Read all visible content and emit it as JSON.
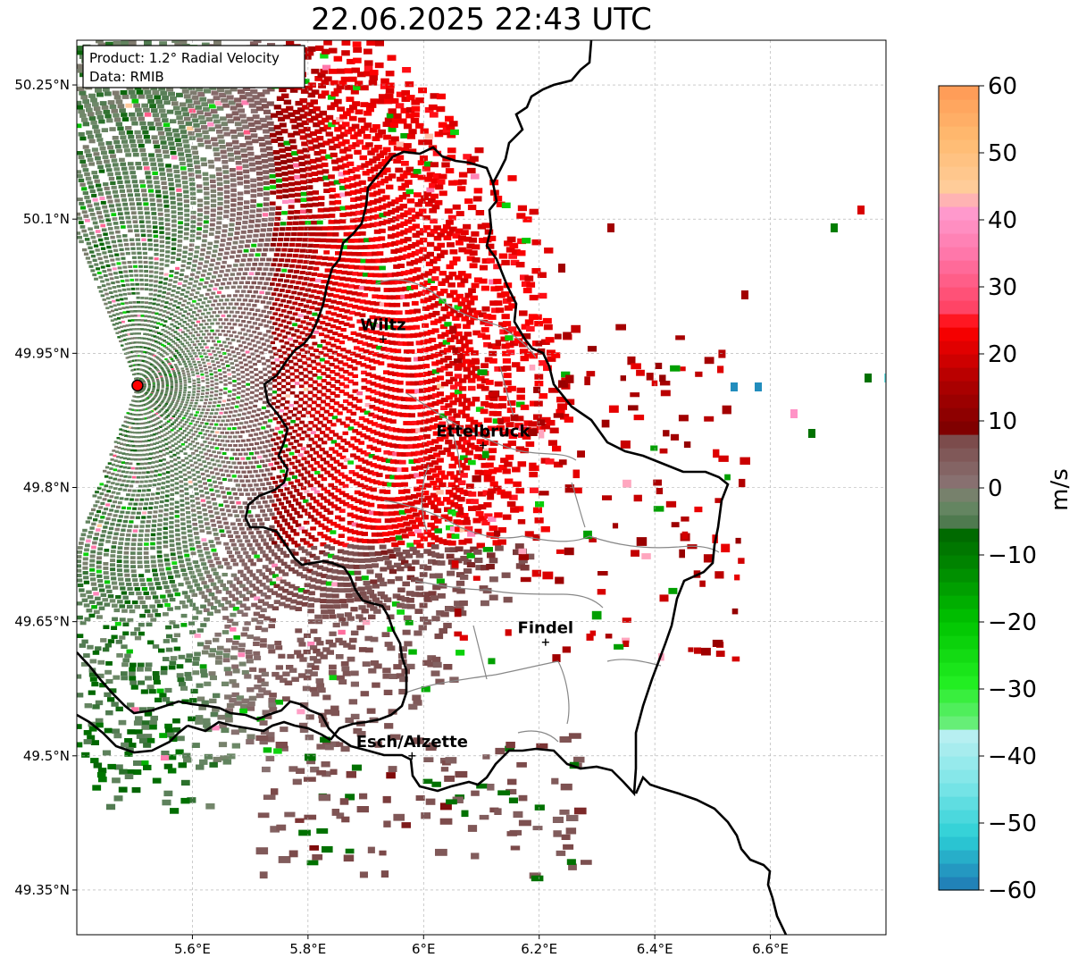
{
  "title": "22.06.2025 22:43 UTC",
  "info_box": {
    "product": "Product: 1.2° Radial Velocity",
    "data": "Data: RMIB"
  },
  "map": {
    "lon_range": [
      5.4,
      6.8
    ],
    "lat_range": [
      49.3,
      50.3
    ],
    "lon_ticks": [
      {
        "value": 5.6,
        "label": "5.6°E"
      },
      {
        "value": 5.8,
        "label": "5.8°E"
      },
      {
        "value": 6.0,
        "label": "6°E"
      },
      {
        "value": 6.2,
        "label": "6.2°E"
      },
      {
        "value": 6.4,
        "label": "6.4°E"
      },
      {
        "value": 6.6,
        "label": "6.6°E"
      }
    ],
    "lat_ticks": [
      {
        "value": 49.35,
        "label": "49.35°N"
      },
      {
        "value": 49.5,
        "label": "49.5°N"
      },
      {
        "value": 49.65,
        "label": "49.65°N"
      },
      {
        "value": 49.8,
        "label": "49.8°N"
      },
      {
        "value": 49.95,
        "label": "49.95°N"
      },
      {
        "value": 50.1,
        "label": "50.1°N"
      },
      {
        "value": 50.25,
        "label": "50.25°N"
      }
    ],
    "grid": true,
    "radar_site": {
      "lon": 5.505,
      "lat": 49.914
    },
    "cities": [
      {
        "name": "Wiltz",
        "lon": 5.93,
        "lat": 49.966
      },
      {
        "name": "Ettelbruck",
        "lon": 6.103,
        "lat": 49.847
      },
      {
        "name": "Findel",
        "lon": 6.211,
        "lat": 49.627
      },
      {
        "name": "Esch/Alzette",
        "lon": 5.98,
        "lat": 49.5
      }
    ]
  },
  "colorbar": {
    "label": "m/s",
    "min": -60,
    "max": 60,
    "ticks": [
      {
        "value": 60,
        "label": "60"
      },
      {
        "value": 50,
        "label": "50"
      },
      {
        "value": 40,
        "label": "40"
      },
      {
        "value": 30,
        "label": "30"
      },
      {
        "value": 20,
        "label": "20"
      },
      {
        "value": 10,
        "label": "10"
      },
      {
        "value": 0,
        "label": "0"
      },
      {
        "value": -10,
        "label": "−10"
      },
      {
        "value": -20,
        "label": "−20"
      },
      {
        "value": -30,
        "label": "−30"
      },
      {
        "value": -40,
        "label": "−40"
      },
      {
        "value": -50,
        "label": "−50"
      },
      {
        "value": -60,
        "label": "−60"
      }
    ],
    "color_stops": [
      {
        "value": -60,
        "color": "#1f77b4"
      },
      {
        "value": -52,
        "color": "#2ccfd6"
      },
      {
        "value": -44,
        "color": "#7ee6e8"
      },
      {
        "value": -36,
        "color": "#bff0f2"
      },
      {
        "value": -35,
        "color": "#66ee77"
      },
      {
        "value": -29,
        "color": "#22ee22"
      },
      {
        "value": -20,
        "color": "#00c400"
      },
      {
        "value": -13,
        "color": "#009000"
      },
      {
        "value": -6,
        "color": "#006400"
      },
      {
        "value": -5,
        "color": "#4f7a4f"
      },
      {
        "value": -2,
        "color": "#6f8a6a"
      },
      {
        "value": 1,
        "color": "#887070"
      },
      {
        "value": 8,
        "color": "#7a4646"
      },
      {
        "value": 9,
        "color": "#800000"
      },
      {
        "value": 16,
        "color": "#b00000"
      },
      {
        "value": 24,
        "color": "#ff0000"
      },
      {
        "value": 27,
        "color": "#ff4466"
      },
      {
        "value": 35,
        "color": "#ff77aa"
      },
      {
        "value": 41,
        "color": "#ff99cc"
      },
      {
        "value": 45,
        "color": "#ffcc99"
      },
      {
        "value": 52,
        "color": "#ffbb70"
      },
      {
        "value": 60,
        "color": "#ff9955"
      }
    ]
  }
}
